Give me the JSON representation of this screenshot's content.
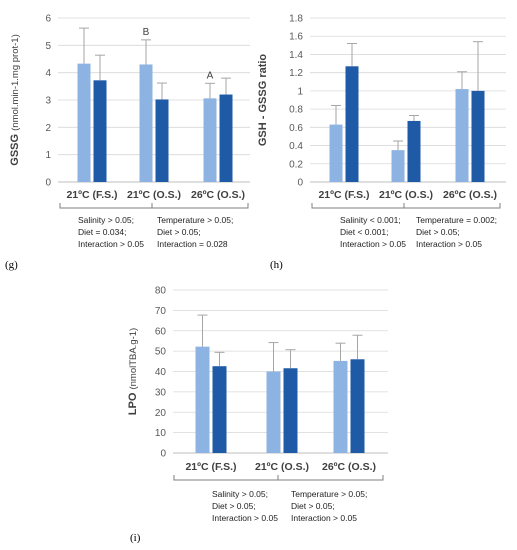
{
  "colors": {
    "light": "#8db3e2",
    "dark": "#1f5aa6",
    "error": "#a6a6a6",
    "axis": "#bfbfbf",
    "grid": "#d9d9d9"
  },
  "chart_data": [
    {
      "type": "bar",
      "panel_label": "(g)",
      "ylabel_main": "GSSG ",
      "ylabel_unit": "(nmol.min-1.mg prot-1)",
      "categories": [
        "21ºC (F.S.)",
        "21ºC (O.S.)",
        "26ºC (O.S.)"
      ],
      "ylim": [
        0,
        6
      ],
      "yticks": [
        0,
        1,
        2,
        3,
        4,
        5,
        6
      ],
      "series": [
        {
          "color": "light",
          "values": [
            4.33,
            4.3,
            3.06
          ],
          "errors": [
            1.3,
            0.9,
            0.55
          ]
        },
        {
          "color": "dark",
          "values": [
            3.72,
            3.02,
            3.2
          ],
          "errors": [
            0.92,
            0.6,
            0.6
          ]
        }
      ],
      "annotations": [
        {
          "category": 1,
          "series": 0,
          "text": "B"
        },
        {
          "category": 2,
          "series": 0,
          "text": "A"
        }
      ],
      "brackets": [
        {
          "from": 0,
          "to": 1,
          "lines": [
            "Salinity > 0.05;",
            "Diet = 0.034;",
            "Interaction > 0.05"
          ]
        },
        {
          "from": 1,
          "to": 2,
          "lines": [
            "Temperature > 0.05;",
            "Diet > 0.05;",
            "Interaction = 0.028"
          ]
        }
      ]
    },
    {
      "type": "bar",
      "panel_label": "(h)",
      "ylabel_main": "GSH - GSSG ratio",
      "ylabel_unit": "",
      "categories": [
        "21ºC (F.S.)",
        "21ºC (O.S.)",
        "26ºC (O.S.)"
      ],
      "ylim": [
        0,
        1.8
      ],
      "yticks": [
        0,
        0.2,
        0.4,
        0.6,
        0.8,
        1,
        1.2,
        1.4,
        1.6,
        1.8
      ],
      "series": [
        {
          "color": "light",
          "values": [
            0.63,
            0.35,
            1.02
          ],
          "errors": [
            0.21,
            0.1,
            0.19
          ]
        },
        {
          "color": "dark",
          "values": [
            1.27,
            0.67,
            1.0
          ],
          "errors": [
            0.25,
            0.06,
            0.54
          ]
        }
      ],
      "annotations": [],
      "brackets": [
        {
          "from": 0,
          "to": 1,
          "lines": [
            "Salinity < 0.001;",
            "Diet < 0.001;",
            "Interaction > 0.05"
          ]
        },
        {
          "from": 1,
          "to": 2,
          "lines": [
            "Temperature = 0.002;",
            "Diet > 0.05;",
            "Interaction > 0.05"
          ]
        }
      ]
    },
    {
      "type": "bar",
      "panel_label": "(i)",
      "ylabel_main": "LPO ",
      "ylabel_unit": "(nmolTBA.g-1)",
      "categories": [
        "21ºC (F.S.)",
        "21ºC (O.S.)",
        "26ºC (O.S.)"
      ],
      "ylim": [
        0,
        80
      ],
      "yticks": [
        0,
        10,
        20,
        30,
        40,
        50,
        60,
        70,
        80
      ],
      "series": [
        {
          "color": "light",
          "values": [
            52.2,
            40.0,
            45.2
          ],
          "errors": [
            15.5,
            14.2,
            8.7
          ]
        },
        {
          "color": "dark",
          "values": [
            42.6,
            41.6,
            46.0
          ],
          "errors": [
            6.8,
            9.1,
            11.8
          ]
        }
      ],
      "annotations": [],
      "brackets": [
        {
          "from": 0,
          "to": 1,
          "lines": [
            "Salinity > 0.05;",
            "Diet > 0.05;",
            "Interaction > 0.05"
          ]
        },
        {
          "from": 1,
          "to": 2,
          "lines": [
            "Temperature > 0.05;",
            "Diet > 0.05;",
            "Interaction > 0.05"
          ]
        }
      ]
    }
  ]
}
